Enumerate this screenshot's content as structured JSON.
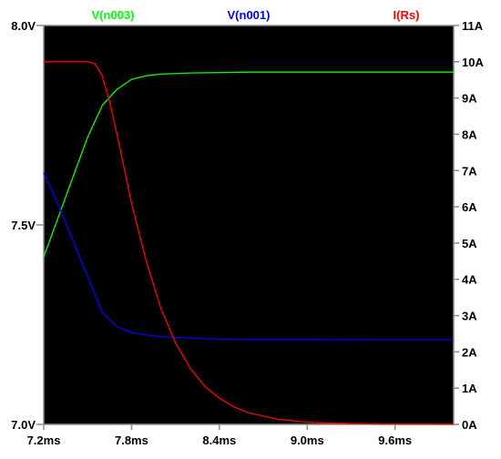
{
  "chart_data": {
    "type": "line",
    "colors": {
      "background": "#000000",
      "frame": "#8c8c8c",
      "tick_text": "#000000",
      "panel": "#ffffff"
    },
    "x_axis": {
      "unit": "ms",
      "range": [
        7.2,
        10.0
      ],
      "ticks": [
        7.2,
        7.8,
        8.4,
        9.0,
        9.6
      ],
      "tick_labels": [
        "7.2ms",
        "7.8ms",
        "8.4ms",
        "9.0ms",
        "9.6ms"
      ]
    },
    "y_left": {
      "range": [
        7.0,
        8.0
      ],
      "ticks": [
        7.0,
        7.5,
        8.0
      ],
      "tick_labels": [
        "7.0V",
        "7.5V",
        "8.0V"
      ]
    },
    "y_right": {
      "range": [
        0,
        11
      ],
      "ticks": [
        0,
        1,
        2,
        3,
        4,
        5,
        6,
        7,
        8,
        9,
        10,
        11
      ],
      "tick_labels": [
        "0A",
        "1A",
        "2A",
        "3A",
        "4A",
        "5A",
        "6A",
        "7A",
        "8A",
        "9A",
        "10A",
        "11A"
      ]
    },
    "grid": false,
    "legend_position": "top",
    "series": [
      {
        "name": "V(n003)",
        "color": "#00ff00",
        "axis": "left",
        "x": [
          7.2,
          7.3,
          7.4,
          7.5,
          7.6,
          7.7,
          7.8,
          7.9,
          8.0,
          8.2,
          8.4,
          8.6,
          9.0,
          9.5,
          10.0
        ],
        "y": [
          7.42,
          7.52,
          7.62,
          7.72,
          7.8,
          7.84,
          7.865,
          7.874,
          7.878,
          7.881,
          7.882,
          7.883,
          7.883,
          7.883,
          7.883
        ]
      },
      {
        "name": "V(n001)",
        "color": "#0000ff",
        "axis": "left",
        "x": [
          7.2,
          7.3,
          7.4,
          7.5,
          7.6,
          7.7,
          7.8,
          7.9,
          8.0,
          8.2,
          8.4,
          8.6,
          9.0,
          9.5,
          10.0
        ],
        "y": [
          7.63,
          7.55,
          7.46,
          7.37,
          7.28,
          7.245,
          7.23,
          7.224,
          7.22,
          7.216,
          7.214,
          7.213,
          7.213,
          7.212,
          7.212
        ]
      },
      {
        "name": "I(Rs)",
        "color": "#ff0000",
        "axis": "right",
        "x": [
          7.2,
          7.3,
          7.4,
          7.5,
          7.55,
          7.6,
          7.65,
          7.7,
          7.8,
          7.9,
          8.0,
          8.1,
          8.2,
          8.3,
          8.4,
          8.5,
          8.6,
          8.8,
          9.0,
          9.2,
          9.5,
          10.0
        ],
        "y": [
          10.0,
          10.0,
          10.0,
          10.0,
          9.95,
          9.6,
          8.9,
          8.0,
          6.1,
          4.5,
          3.2,
          2.25,
          1.55,
          1.05,
          0.72,
          0.48,
          0.32,
          0.14,
          0.06,
          0.03,
          0.01,
          0.0
        ]
      }
    ]
  }
}
